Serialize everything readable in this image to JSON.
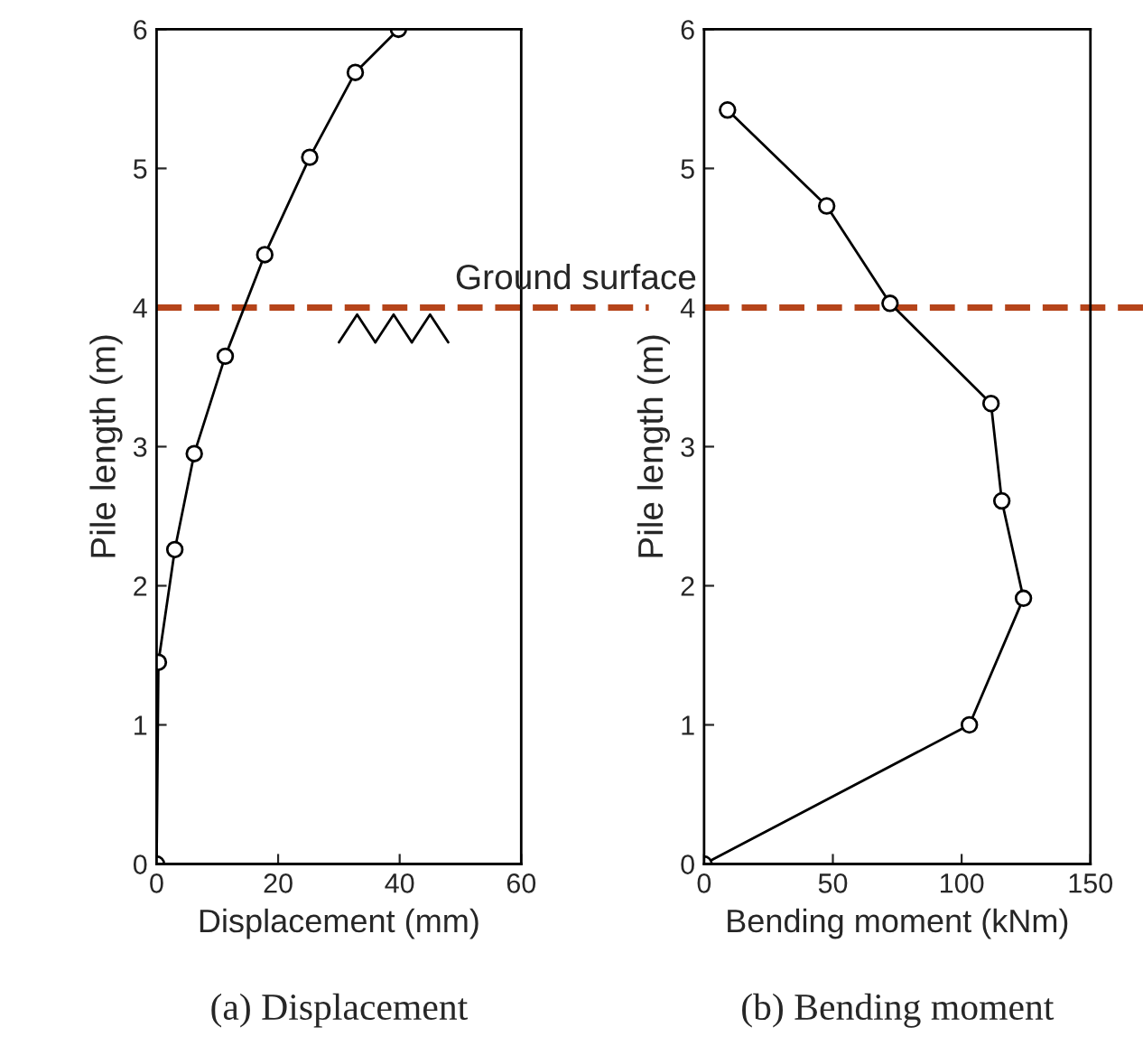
{
  "chart_data": [
    {
      "type": "line",
      "xlabel": "Displacement (mm)",
      "ylabel": "Pile length (m)",
      "xlim": [
        0,
        60
      ],
      "xticks": [
        0,
        20,
        40,
        60
      ],
      "ylim": [
        0,
        6
      ],
      "yticks": [
        0,
        1,
        2,
        3,
        4,
        5,
        6
      ],
      "marker": "circle",
      "grid": false,
      "legend": false,
      "series": [
        {
          "color": "#000000",
          "x": [
            0,
            0.3,
            3,
            6.2,
            11.3,
            17.8,
            25.2,
            32.7,
            39.8
          ],
          "values": [
            0,
            1.45,
            2.26,
            2.95,
            3.65,
            4.38,
            5.08,
            5.69,
            6.0
          ]
        }
      ],
      "ref_lines": [
        {
          "axis": "y",
          "value": 4,
          "label": "Ground surface",
          "color": "#b5441a",
          "line_style": "dashed"
        }
      ],
      "annotations": [
        "(a) Displacement"
      ]
    },
    {
      "type": "line",
      "xlabel": "Bending moment (kNm)",
      "ylabel": "Pile length (m)",
      "xlim": [
        0,
        150
      ],
      "xticks": [
        0,
        50,
        100,
        150
      ],
      "ylim": [
        0,
        6
      ],
      "yticks": [
        0,
        1,
        2,
        3,
        4,
        5,
        6
      ],
      "marker": "circle",
      "grid": false,
      "legend": false,
      "series": [
        {
          "color": "#000000",
          "x": [
            0,
            103,
            124,
            115.6,
            111.4,
            72.2,
            47.6,
            9.1
          ],
          "values": [
            0,
            1.0,
            1.91,
            2.61,
            3.31,
            4.03,
            4.73,
            5.42
          ]
        }
      ],
      "ref_lines": [
        {
          "axis": "y",
          "value": 4,
          "color": "#b5441a",
          "line_style": "dashed"
        }
      ],
      "annotations": [
        "(b) Bending moment"
      ]
    }
  ]
}
